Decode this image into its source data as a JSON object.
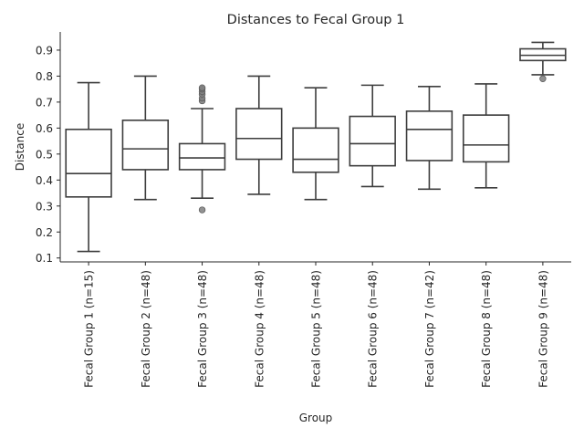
{
  "chart_data": {
    "type": "box",
    "title": "Distances to Fecal Group 1",
    "xlabel": "Group",
    "ylabel": "Distance",
    "ylim": [
      0.085,
      0.97
    ],
    "yticks": [
      0.1,
      0.2,
      0.3,
      0.4,
      0.5,
      0.6,
      0.7,
      0.8,
      0.9
    ],
    "grid": false,
    "categories": [
      "Fecal Group 1 (n=15)",
      "Fecal Group 2 (n=48)",
      "Fecal Group 3 (n=48)",
      "Fecal Group 4 (n=48)",
      "Fecal Group 5 (n=48)",
      "Fecal Group 6 (n=48)",
      "Fecal Group 7 (n=42)",
      "Fecal Group 8 (n=48)",
      "Fecal Group 9 (n=48)"
    ],
    "boxes": [
      {
        "whislo": 0.125,
        "q1": 0.335,
        "median": 0.425,
        "q3": 0.595,
        "whishi": 0.775,
        "fliers": []
      },
      {
        "whislo": 0.325,
        "q1": 0.44,
        "median": 0.52,
        "q3": 0.63,
        "whishi": 0.8,
        "fliers": []
      },
      {
        "whislo": 0.33,
        "q1": 0.44,
        "median": 0.485,
        "q3": 0.54,
        "whishi": 0.675,
        "fliers": [
          0.285,
          0.705,
          0.715,
          0.73,
          0.74,
          0.75,
          0.755
        ]
      },
      {
        "whislo": 0.345,
        "q1": 0.48,
        "median": 0.56,
        "q3": 0.675,
        "whishi": 0.8,
        "fliers": []
      },
      {
        "whislo": 0.325,
        "q1": 0.43,
        "median": 0.48,
        "q3": 0.6,
        "whishi": 0.755,
        "fliers": []
      },
      {
        "whislo": 0.375,
        "q1": 0.455,
        "median": 0.54,
        "q3": 0.645,
        "whishi": 0.765,
        "fliers": []
      },
      {
        "whislo": 0.365,
        "q1": 0.475,
        "median": 0.595,
        "q3": 0.665,
        "whishi": 0.76,
        "fliers": []
      },
      {
        "whislo": 0.37,
        "q1": 0.47,
        "median": 0.535,
        "q3": 0.65,
        "whishi": 0.77,
        "fliers": []
      },
      {
        "whislo": 0.805,
        "q1": 0.86,
        "median": 0.88,
        "q3": 0.905,
        "whishi": 0.93,
        "fliers": [
          0.79
        ]
      }
    ],
    "colors": {
      "box_edge": "#3d3d3d",
      "box_fill": "#ffffff",
      "outlier": "#7f7f7f",
      "text": "#262626"
    }
  }
}
